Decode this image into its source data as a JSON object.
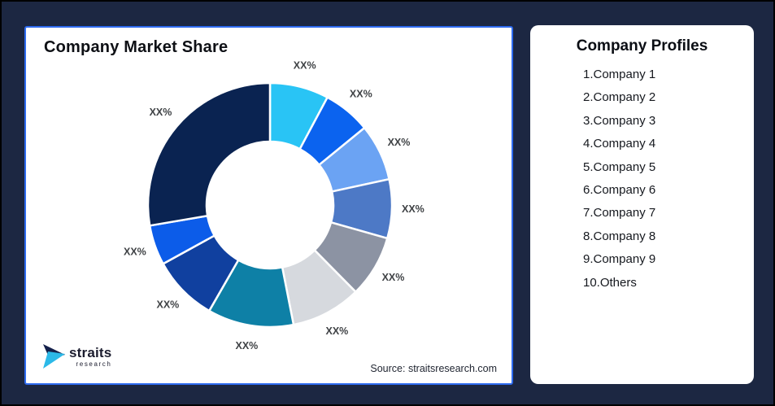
{
  "frame": {
    "background": "#1c2742",
    "outer_border": "#000000"
  },
  "chart_card": {
    "title": "Company Market Share",
    "source": "Source: straitsresearch.com",
    "border_color": "#2e6bf0"
  },
  "logo": {
    "name": "straits",
    "sub": "research",
    "navy": "#14204a",
    "cyan": "#2cb9e8"
  },
  "profiles_card": {
    "title": "Company Profiles",
    "items": [
      "1.Company 1",
      "2.Company 2",
      "3.Company 3",
      "4.Company 4",
      "5.Company 5",
      "6.Company 6",
      "7.Company 7",
      "8.Company 8",
      "9.Company 9",
      "10.Others"
    ]
  },
  "chart_data": {
    "type": "pie",
    "variant": "donut",
    "title": "Company Market Share",
    "legend_position": "none",
    "start_angle_deg": 0,
    "direction": "clockwise",
    "label_placeholder": "XX%",
    "segments": [
      {
        "label": "XX%",
        "share_est_pct": 7.8,
        "color": "#29c4f5"
      },
      {
        "label": "XX%",
        "share_est_pct": 6.3,
        "color": "#0b63ef"
      },
      {
        "label": "XX%",
        "share_est_pct": 7.5,
        "color": "#6ba3f3"
      },
      {
        "label": "XX%",
        "share_est_pct": 7.8,
        "color": "#4d79c6"
      },
      {
        "label": "XX%",
        "share_est_pct": 8.2,
        "color": "#8c93a3"
      },
      {
        "label": "XX%",
        "share_est_pct": 9.3,
        "color": "#d6d9de"
      },
      {
        "label": "XX%",
        "share_est_pct": 11.4,
        "color": "#0e80a6"
      },
      {
        "label": "XX%",
        "share_est_pct": 8.7,
        "color": "#10409f"
      },
      {
        "label": "XX%",
        "share_est_pct": 5.3,
        "color": "#0c5ce9"
      },
      {
        "label": "XX%",
        "share_est_pct": 27.7,
        "color": "#0a2351"
      }
    ]
  }
}
